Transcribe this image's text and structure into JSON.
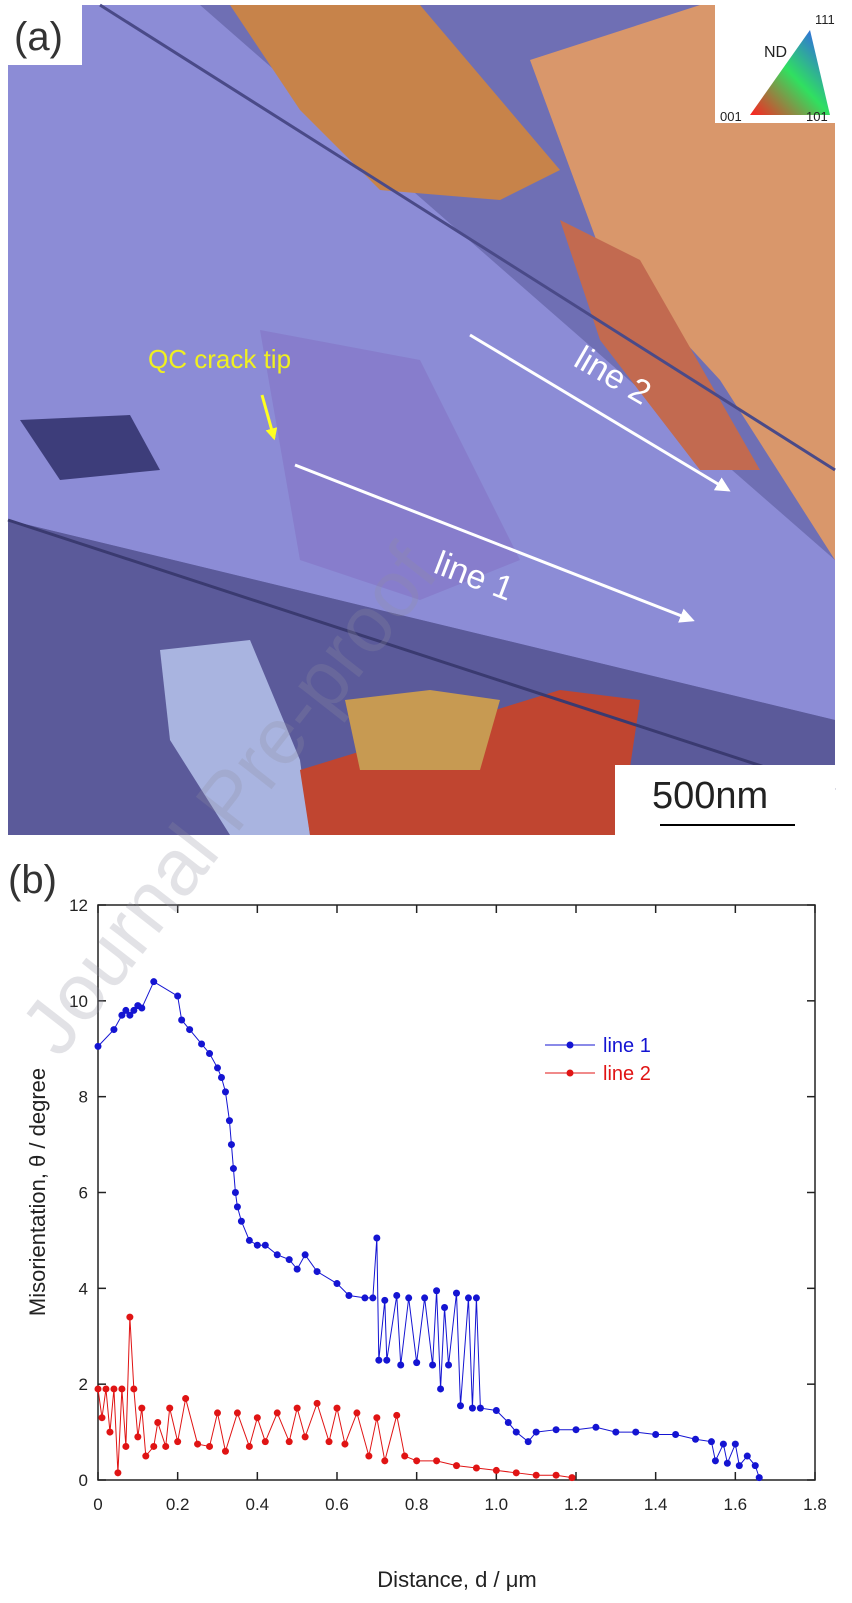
{
  "panel_a": {
    "label": "(a)",
    "color_key": {
      "title": "ND",
      "top": "111",
      "left": "001",
      "right": "101"
    },
    "annotation": "QC crack tip",
    "line_labels": [
      "line 1",
      "line 2"
    ],
    "scale_bar": "500nm"
  },
  "panel_b_label": "(b)",
  "watermark": "Journal Pre-proof",
  "chart_data": {
    "type": "line",
    "xlabel": "Distance,  d / μm",
    "ylabel": "Misorientation, θ / degree",
    "xlim": [
      0,
      1.8
    ],
    "xticks": [
      0,
      0.2,
      0.4,
      0.6,
      0.8,
      {
        "value": 1,
        "label": "1.0"
      },
      1.2,
      1.4,
      1.6,
      1.8
    ],
    "ylim": [
      0,
      12
    ],
    "yticks": [
      0,
      2,
      4,
      6,
      8,
      10,
      12
    ],
    "legend": "upper right",
    "series": [
      {
        "name": "line 1",
        "color": "#1414d2",
        "x": [
          0,
          0.04,
          0.06,
          0.07,
          0.08,
          0.09,
          0.1,
          0.11,
          0.14,
          0.2,
          0.21,
          0.23,
          0.26,
          0.28,
          0.3,
          0.31,
          0.32,
          0.33,
          0.335,
          0.34,
          0.345,
          0.35,
          0.36,
          0.38,
          0.4,
          0.42,
          0.45,
          0.48,
          0.5,
          0.52,
          0.55,
          0.6,
          0.63,
          0.67,
          0.69,
          0.7,
          0.705,
          0.72,
          0.725,
          0.75,
          0.76,
          0.78,
          0.8,
          0.82,
          0.84,
          0.85,
          0.86,
          0.87,
          0.88,
          0.9,
          0.91,
          0.93,
          0.94,
          0.95,
          0.96,
          1.0,
          1.03,
          1.05,
          1.08,
          1.1,
          1.15,
          1.2,
          1.25,
          1.3,
          1.35,
          1.4,
          1.45,
          1.5,
          1.54,
          1.55,
          1.57,
          1.58,
          1.6,
          1.61,
          1.63,
          1.65,
          1.66
        ],
        "values": [
          9.05,
          9.4,
          9.7,
          9.8,
          9.7,
          9.8,
          9.9,
          9.85,
          10.4,
          10.1,
          9.6,
          9.4,
          9.1,
          8.9,
          8.6,
          8.4,
          8.1,
          7.5,
          7.0,
          6.5,
          6.0,
          5.7,
          5.4,
          5.0,
          4.9,
          4.9,
          4.7,
          4.6,
          4.4,
          4.7,
          4.35,
          4.1,
          3.85,
          3.8,
          3.8,
          5.05,
          2.5,
          3.75,
          2.5,
          3.85,
          2.4,
          3.8,
          2.45,
          3.8,
          2.4,
          3.95,
          1.9,
          3.6,
          2.4,
          3.9,
          1.55,
          3.8,
          1.5,
          3.8,
          1.5,
          1.45,
          1.2,
          1.0,
          0.8,
          1.0,
          1.05,
          1.05,
          1.1,
          1.0,
          1.0,
          0.95,
          0.95,
          0.85,
          0.8,
          0.4,
          0.75,
          0.35,
          0.75,
          0.3,
          0.5,
          0.3,
          0.05
        ]
      },
      {
        "name": "line 2",
        "color": "#e01414",
        "x": [
          0,
          0.01,
          0.02,
          0.03,
          0.04,
          0.05,
          0.06,
          0.07,
          0.08,
          0.09,
          0.1,
          0.11,
          0.12,
          0.14,
          0.15,
          0.17,
          0.18,
          0.2,
          0.22,
          0.25,
          0.28,
          0.3,
          0.32,
          0.35,
          0.38,
          0.4,
          0.42,
          0.45,
          0.48,
          0.5,
          0.52,
          0.55,
          0.58,
          0.6,
          0.62,
          0.65,
          0.68,
          0.7,
          0.72,
          0.75,
          0.77,
          0.8,
          0.85,
          0.9,
          0.95,
          1.0,
          1.05,
          1.1,
          1.15,
          1.19
        ],
        "values": [
          1.9,
          1.3,
          1.9,
          1.0,
          1.9,
          0.15,
          1.9,
          0.7,
          3.4,
          1.9,
          0.9,
          1.5,
          0.5,
          0.7,
          1.2,
          0.7,
          1.5,
          0.8,
          1.7,
          0.75,
          0.7,
          1.4,
          0.6,
          1.4,
          0.7,
          1.3,
          0.8,
          1.4,
          0.8,
          1.5,
          0.9,
          1.6,
          0.8,
          1.5,
          0.75,
          1.4,
          0.5,
          1.3,
          0.4,
          1.35,
          0.5,
          0.4,
          0.4,
          0.3,
          0.25,
          0.2,
          0.15,
          0.1,
          0.1,
          0.05
        ]
      }
    ]
  }
}
